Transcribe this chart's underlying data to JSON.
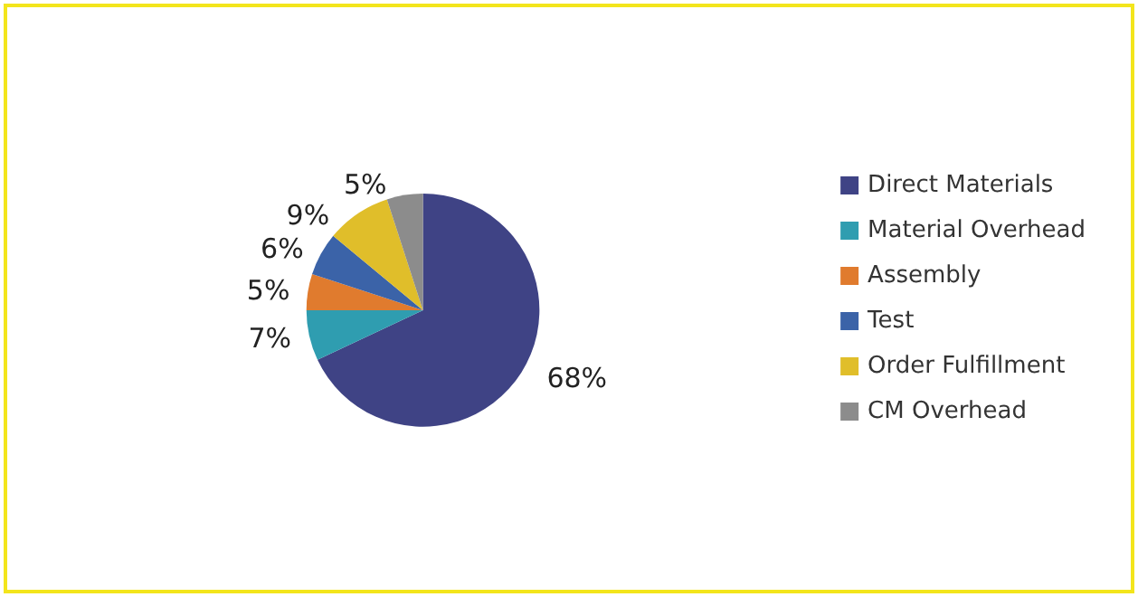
{
  "chart_data": {
    "type": "pie",
    "categories": [
      "Direct Materials",
      "Material Overhead",
      "Assembly",
      "Test",
      "Order Fulfillment",
      "CM Overhead"
    ],
    "values": [
      68,
      7,
      5,
      6,
      9,
      5
    ],
    "value_labels": [
      "68%",
      "7%",
      "5%",
      "6%",
      "9%",
      "5%"
    ],
    "colors": [
      "#3f4385",
      "#2f9db0",
      "#e07b2e",
      "#3b63a8",
      "#e0be2a",
      "#8c8c8c"
    ],
    "legend": "right"
  }
}
